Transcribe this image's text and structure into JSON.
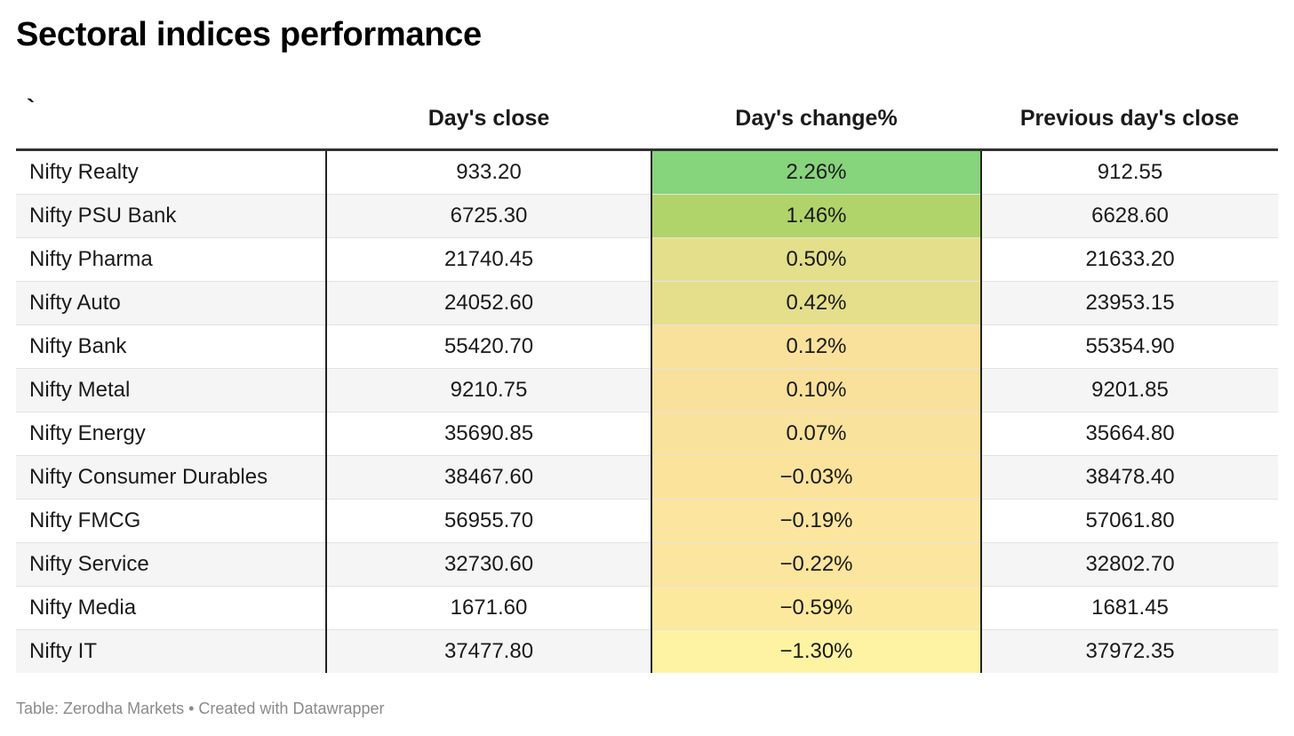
{
  "title": "Sectoral indices performance",
  "source": "Table: Zerodha Markets • Created with Datawrapper",
  "chart_data": {
    "type": "table",
    "title": "Sectoral indices performance",
    "columns": [
      "`",
      "Day's close",
      "Day's change%",
      "Previous day's close"
    ],
    "rows": [
      {
        "name": "Nifty Realty",
        "close": "933.20",
        "change": "2.26%",
        "prev": "912.55",
        "color": "#86d47b"
      },
      {
        "name": "Nifty PSU Bank",
        "close": "6725.30",
        "change": "1.46%",
        "prev": "6628.60",
        "color": "#b0d46a"
      },
      {
        "name": "Nifty Pharma",
        "close": "21740.45",
        "change": "0.50%",
        "prev": "21633.20",
        "color": "#e3df8a"
      },
      {
        "name": "Nifty Auto",
        "close": "24052.60",
        "change": "0.42%",
        "prev": "23953.15",
        "color": "#e5de8a"
      },
      {
        "name": "Nifty Bank",
        "close": "55420.70",
        "change": "0.12%",
        "prev": "55354.90",
        "color": "#f9e19b"
      },
      {
        "name": "Nifty Metal",
        "close": "9210.75",
        "change": "0.10%",
        "prev": "9201.85",
        "color": "#f9e19b"
      },
      {
        "name": "Nifty Energy",
        "close": "35690.85",
        "change": "0.07%",
        "prev": "35664.80",
        "color": "#f9e29b"
      },
      {
        "name": "Nifty Consumer Durables",
        "close": "38467.60",
        "change": "−0.03%",
        "prev": "38478.40",
        "color": "#fbe39c"
      },
      {
        "name": "Nifty FMCG",
        "close": "56955.70",
        "change": "−0.19%",
        "prev": "57061.80",
        "color": "#fce59e"
      },
      {
        "name": "Nifty Service",
        "close": "32730.60",
        "change": "−0.22%",
        "prev": "32802.70",
        "color": "#fce59e"
      },
      {
        "name": "Nifty Media",
        "close": "1671.60",
        "change": "−0.59%",
        "prev": "1681.45",
        "color": "#fde99e"
      },
      {
        "name": "Nifty IT",
        "close": "37477.80",
        "change": "−1.30%",
        "prev": "37972.35",
        "color": "#fef3a3"
      }
    ]
  }
}
